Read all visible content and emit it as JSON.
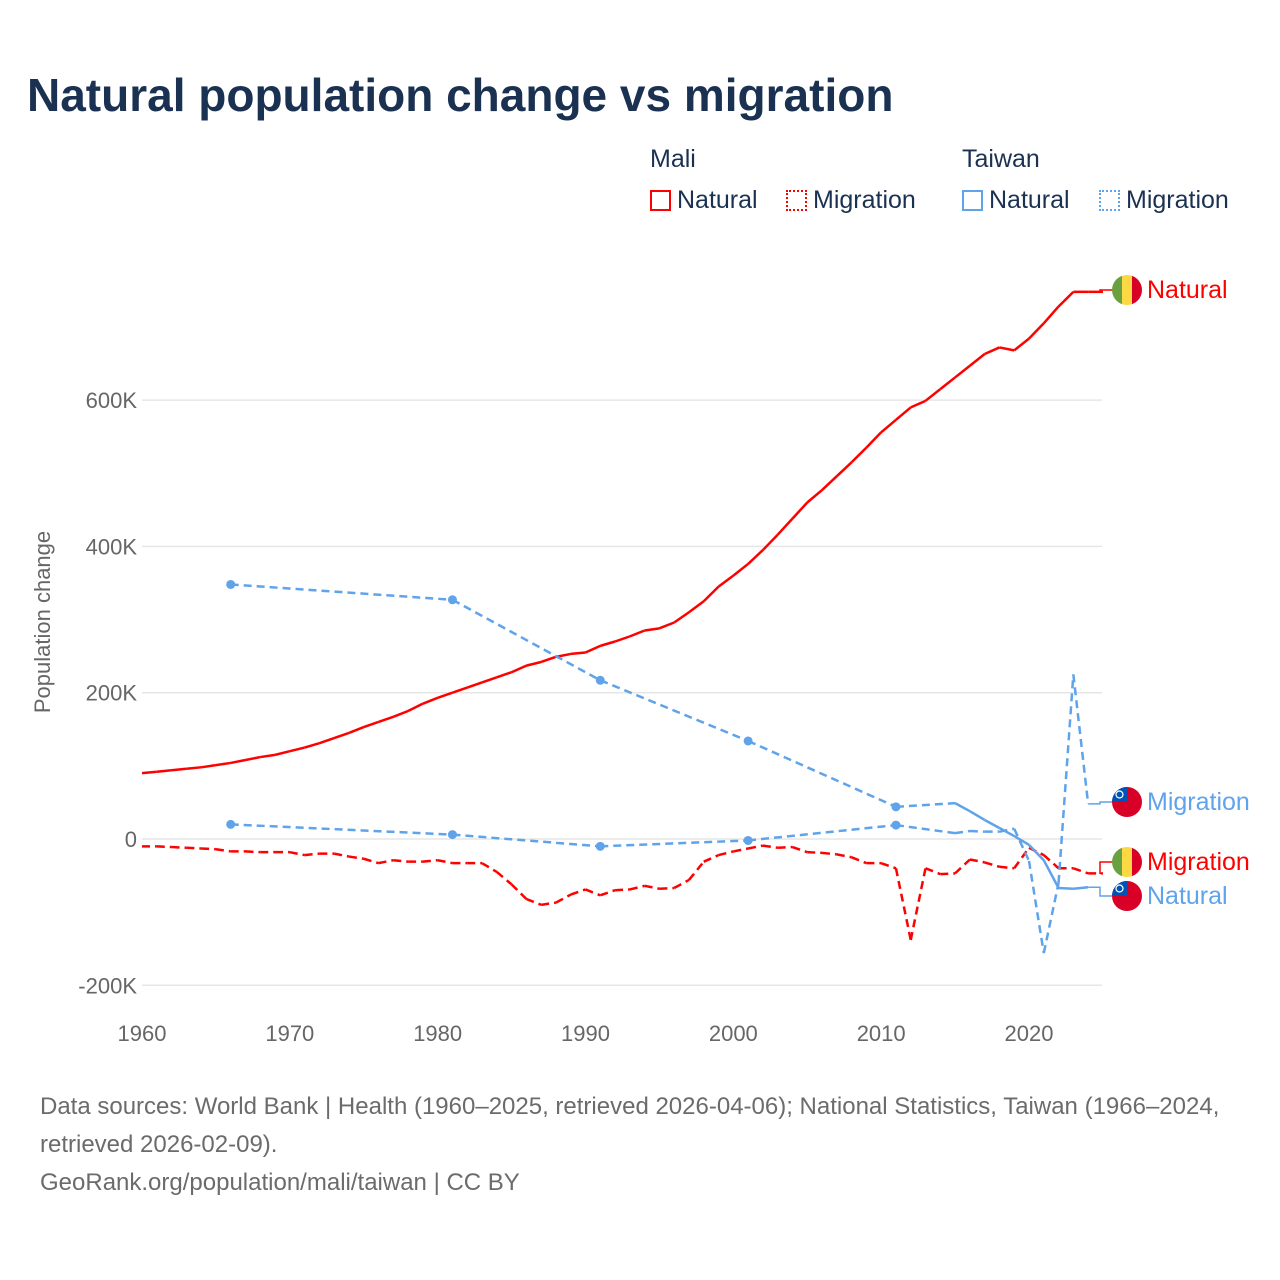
{
  "title": "Natural population change vs migration",
  "legend": {
    "groups": [
      {
        "name": "Mali",
        "color": "#ff0000",
        "items": [
          "Natural",
          "Migration"
        ]
      },
      {
        "name": "Taiwan",
        "color": "#5fa3ea",
        "items": [
          "Natural",
          "Migration"
        ]
      }
    ]
  },
  "footer": {
    "sources": "Data sources: World Bank | Health (1960–2025, retrieved 2026-04-06); National Statistics, Taiwan (1966–2024, retrieved 2026-02-09).",
    "credit": "GeoRank.org/population/mali/taiwan | CC BY"
  },
  "chart_data": {
    "type": "line",
    "title": "Natural population change vs migration",
    "ylabel": "Population change",
    "xlabel": "",
    "xlim": [
      1960,
      2025
    ],
    "ylim": [
      -200000,
      780000
    ],
    "x_ticks": [
      1960,
      1970,
      1980,
      1990,
      2000,
      2010,
      2020
    ],
    "y_ticks": [
      {
        "v": -200000,
        "label": "-200K"
      },
      {
        "v": 0,
        "label": "0"
      },
      {
        "v": 200000,
        "label": "200K"
      },
      {
        "v": 400000,
        "label": "400K"
      },
      {
        "v": 600000,
        "label": "600K"
      }
    ],
    "grid": true,
    "series": [
      {
        "country": "Mali",
        "name": "Natural",
        "end_label": "Natural",
        "color": "#ff0000",
        "style": "solid",
        "flag": "mali",
        "x_start": 1960,
        "values_k": [
          90,
          92,
          94,
          96,
          98,
          101,
          104,
          108,
          112,
          115,
          120,
          125,
          131,
          138,
          145,
          153,
          160,
          167,
          175,
          185,
          193,
          200,
          207,
          214,
          221,
          228,
          237,
          242,
          249,
          253,
          255,
          264,
          270,
          277,
          285,
          288,
          296,
          310,
          325,
          345,
          360,
          376,
          395,
          416,
          438,
          460,
          477,
          496,
          515,
          535,
          556,
          573,
          590,
          599,
          615,
          631,
          647,
          663,
          672,
          668,
          684,
          705,
          728,
          748,
          748,
          748
        ]
      },
      {
        "country": "Mali",
        "name": "Migration",
        "end_label": "Migration",
        "color": "#ff0000",
        "style": "dashed",
        "flag": "mali",
        "x_start": 1960,
        "values_k": [
          -10,
          -10,
          -11,
          -12,
          -13,
          -14,
          -17,
          -17,
          -18,
          -18,
          -18,
          -22,
          -20,
          -20,
          -24,
          -27,
          -33,
          -29,
          -31,
          -31,
          -29,
          -33,
          -33,
          -33,
          -45,
          -62,
          -82,
          -90,
          -87,
          -76,
          -69,
          -77,
          -70,
          -69,
          -64,
          -68,
          -67,
          -56,
          -31,
          -22,
          -17,
          -13,
          -9,
          -12,
          -11,
          -18,
          -19,
          -21,
          -25,
          -33,
          -33,
          -40,
          -138,
          -40,
          -48,
          -47,
          -28,
          -32,
          -38,
          -40,
          -12,
          -22,
          -40,
          -40,
          -47,
          -47
        ]
      },
      {
        "country": "Taiwan",
        "name": "Natural",
        "end_label": "Natural",
        "color": "#5fa3ea",
        "style": "solid",
        "flag": "taiwan",
        "x": [
          1966,
          1981,
          1991,
          2001,
          2011,
          2015,
          2016,
          2017,
          2018,
          2019,
          2020,
          2021,
          2022,
          2023,
          2024
        ],
        "values_k": [
          348,
          327,
          217,
          134,
          44,
          49,
          38,
          26,
          15,
          4,
          -8,
          -29,
          -67,
          -68,
          -66
        ]
      },
      {
        "country": "Taiwan",
        "name": "Migration",
        "end_label": "Migration",
        "color": "#5fa3ea",
        "style": "dashed",
        "flag": "taiwan",
        "x": [
          1966,
          1981,
          1991,
          2001,
          2011,
          2015,
          2016,
          2017,
          2018,
          2019,
          2020,
          2021,
          2022,
          2023,
          2024
        ],
        "values_k": [
          20,
          6,
          -10,
          -2,
          19,
          8,
          11,
          10,
          10,
          14,
          -30,
          -156,
          -60,
          225,
          48
        ]
      }
    ]
  }
}
